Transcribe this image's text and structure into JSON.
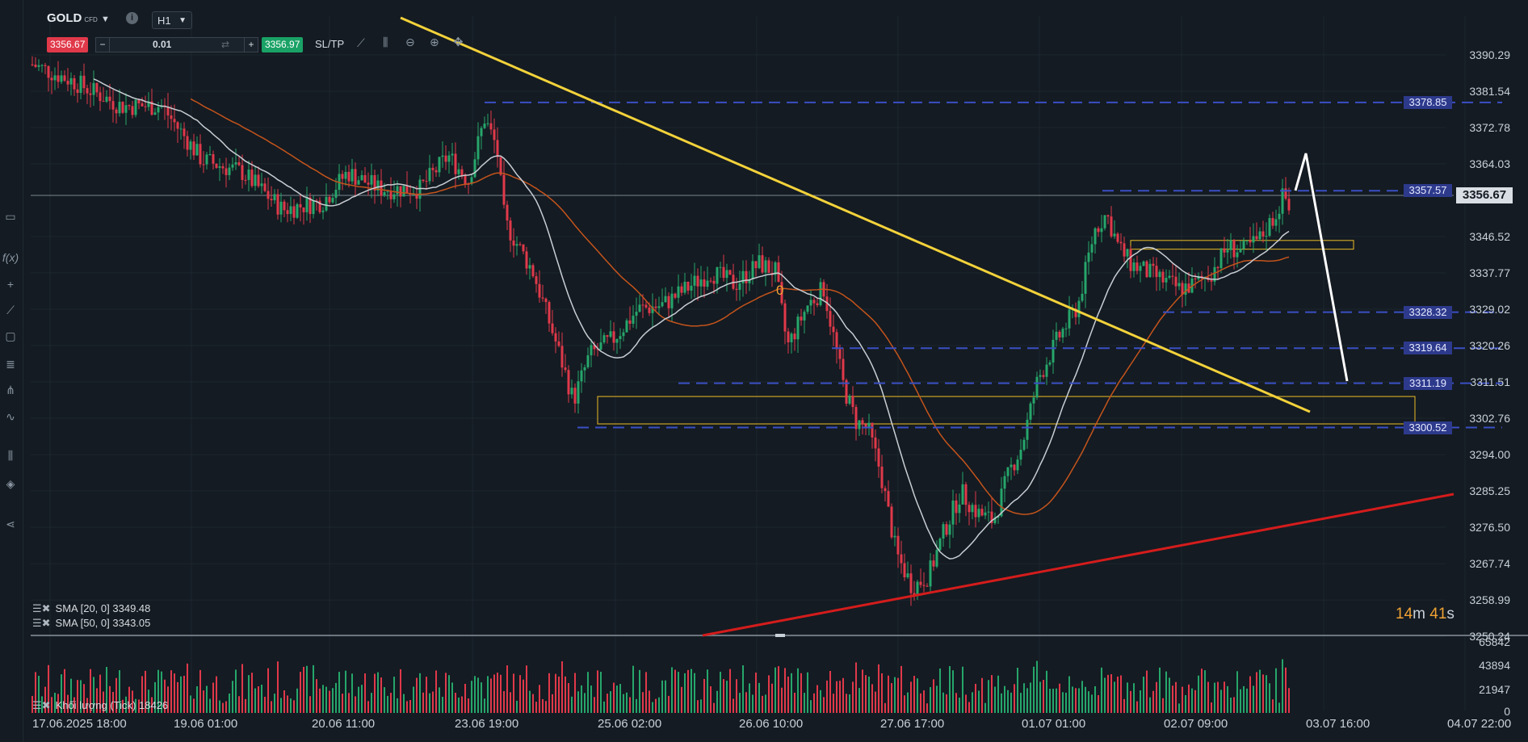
{
  "header": {
    "symbol": "GOLD",
    "symbol_type": "CFD",
    "timeframe": "H1",
    "bid": "3356.67",
    "ask": "3356.97",
    "quantity": "0.01",
    "sltp_label": "SL/TP",
    "minus_label": "−",
    "plus_label": "+"
  },
  "colors": {
    "background": "#141b22",
    "bull_candle": "#26a66b",
    "bear_candle": "#e0394a",
    "sma20": "#c9ced4",
    "sma50": "#c4541c",
    "trendline_down": "#f3d23b",
    "trendline_up": "#d41c1c",
    "level_line": "#3a4fc4",
    "zone": "#c9a227",
    "arrow": "#ffffff"
  },
  "price_axis": {
    "labels": [
      "3390.29",
      "3381.54",
      "3372.78",
      "3364.03",
      "3346.52",
      "3337.77",
      "3329.02",
      "3320.26",
      "3311.51",
      "3302.76",
      "3294.00",
      "3285.25",
      "3276.50",
      "3267.74",
      "3258.99",
      "3250.24"
    ],
    "current_price": "3356.67"
  },
  "level_tags": [
    "3378.85",
    "3357.57",
    "3328.32",
    "3319.64",
    "3311.19",
    "3300.52"
  ],
  "time_axis": [
    "17.06.2025 18:00",
    "19.06 01:00",
    "20.06 11:00",
    "23.06 19:00",
    "25.06 02:00",
    "26.06 10:00",
    "27.06 17:00",
    "01.07 01:00",
    "02.07 09:00",
    "03.07 16:00",
    "04.07 22:00"
  ],
  "indicators": {
    "sma20_label": "SMA [20, 0]",
    "sma20_value": "3349.48",
    "sma50_label": "SMA [50, 0]",
    "sma50_value": "3343.05",
    "volume_label": "Khối lượng (Tick)",
    "volume_value": "18426"
  },
  "volume_axis": [
    "65842",
    "43894",
    "21947",
    "0"
  ],
  "countdown": {
    "min": "14",
    "min_unit": "m",
    "sec": "41",
    "sec_unit": "s"
  },
  "annotation_zero": "0",
  "toolbar_icons": [
    "monitor-icon",
    "function-icon",
    "crosshair-icon",
    "trendline-icon",
    "rectangle-icon",
    "fibonacci-icon",
    "pitchfork-icon",
    "wave-icon",
    "candles-icon",
    "layers-icon",
    "share-icon"
  ]
}
